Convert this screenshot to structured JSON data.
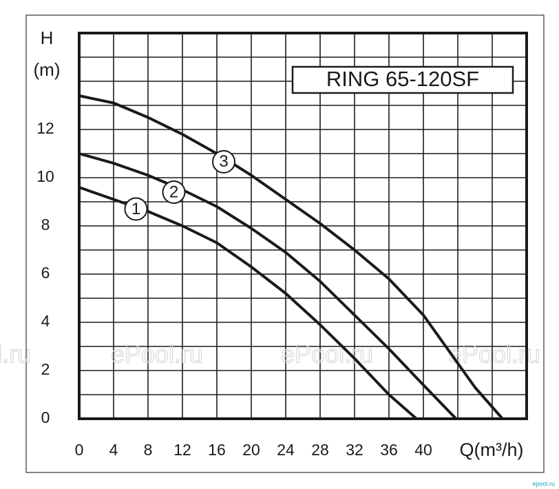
{
  "chart_data": {
    "type": "line",
    "title": "RING 65-120SF",
    "y_label": [
      "H",
      "(m)"
    ],
    "x_label": "Q(m³/h)",
    "watermark": "ePool.ru",
    "footer_mark": "epool.ru",
    "xlim": [
      0,
      52
    ],
    "ylim": [
      0,
      16
    ],
    "xticks": [
      0,
      4,
      8,
      12,
      16,
      20,
      24,
      28,
      32,
      36,
      40
    ],
    "yticks": [
      0,
      2,
      4,
      6,
      8,
      10,
      12
    ],
    "x_gridlines": [
      4,
      8,
      12,
      16,
      20,
      24,
      28,
      32,
      36,
      40,
      44,
      48
    ],
    "y_gridlines": [
      1,
      2,
      3,
      4,
      5,
      6,
      7,
      8,
      9,
      10,
      11,
      12,
      13,
      14,
      15
    ],
    "grid": true,
    "series": [
      {
        "name": "1",
        "color": "#1a1a1a",
        "x": [
          0,
          4,
          8,
          12,
          16,
          20,
          24,
          28,
          32,
          36,
          39.2
        ],
        "values": [
          9.6,
          9.1,
          8.6,
          8.0,
          7.3,
          6.3,
          5.2,
          3.9,
          2.5,
          1.0,
          0
        ]
      },
      {
        "name": "2",
        "color": "#1a1a1a",
        "x": [
          0,
          4,
          8,
          12,
          16,
          20,
          24,
          28,
          32,
          36,
          40,
          43.8
        ],
        "values": [
          11.0,
          10.6,
          10.1,
          9.5,
          8.8,
          7.9,
          6.9,
          5.7,
          4.3,
          2.9,
          1.4,
          0
        ]
      },
      {
        "name": "3",
        "color": "#1a1a1a",
        "x": [
          0,
          4,
          8,
          12,
          16,
          20,
          24,
          28,
          32,
          36,
          40,
          44,
          46,
          49.2
        ],
        "values": [
          13.4,
          13.1,
          12.5,
          11.8,
          11.0,
          10.1,
          9.1,
          8.1,
          7.0,
          5.8,
          4.3,
          2.3,
          1.3,
          0
        ]
      }
    ]
  }
}
